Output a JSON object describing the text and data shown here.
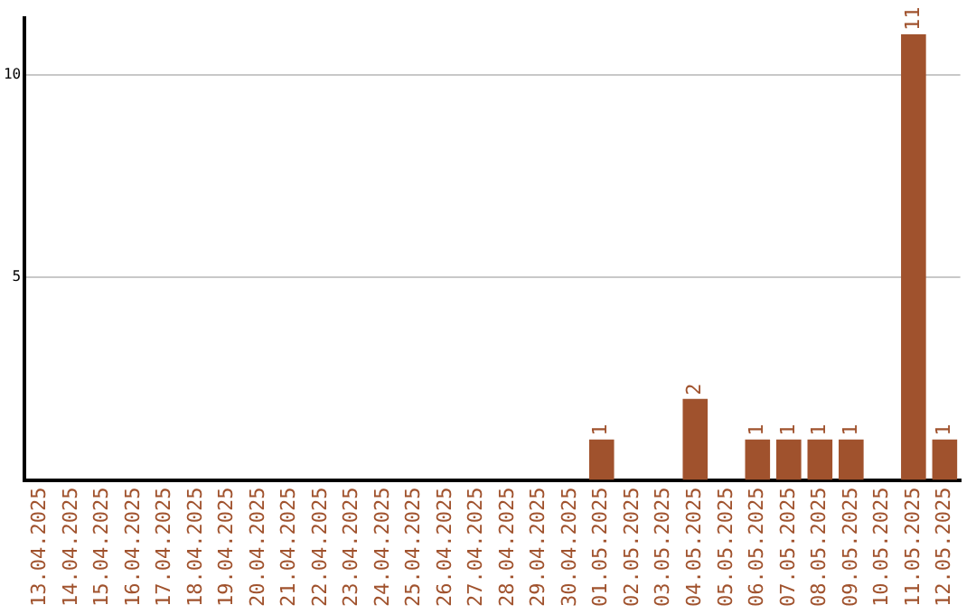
{
  "chart_data": {
    "type": "bar",
    "categories": [
      "13.04.2025",
      "14.04.2025",
      "15.04.2025",
      "16.04.2025",
      "17.04.2025",
      "18.04.2025",
      "19.04.2025",
      "20.04.2025",
      "21.04.2025",
      "22.04.2025",
      "23.04.2025",
      "24.04.2025",
      "25.04.2025",
      "26.04.2025",
      "27.04.2025",
      "28.04.2025",
      "29.04.2025",
      "30.04.2025",
      "01.05.2025",
      "02.05.2025",
      "03.05.2025",
      "04.05.2025",
      "05.05.2025",
      "06.05.2025",
      "07.05.2025",
      "08.05.2025",
      "09.05.2025",
      "10.05.2025",
      "11.05.2025",
      "12.05.2025"
    ],
    "values": [
      0,
      0,
      0,
      0,
      0,
      0,
      0,
      0,
      0,
      0,
      0,
      0,
      0,
      0,
      0,
      0,
      0,
      0,
      1,
      0,
      0,
      2,
      0,
      1,
      1,
      1,
      1,
      0,
      11,
      1
    ],
    "value_labels": [
      null,
      null,
      null,
      null,
      null,
      null,
      null,
      null,
      null,
      null,
      null,
      null,
      null,
      null,
      null,
      null,
      null,
      null,
      "1",
      null,
      null,
      "2",
      null,
      "1",
      "1",
      "1",
      "1",
      null,
      "11",
      "1"
    ],
    "color": "#a0522d",
    "ylim": [
      0,
      11.4
    ],
    "yticks": [
      5,
      10
    ],
    "grid": "y",
    "legend": false
  }
}
